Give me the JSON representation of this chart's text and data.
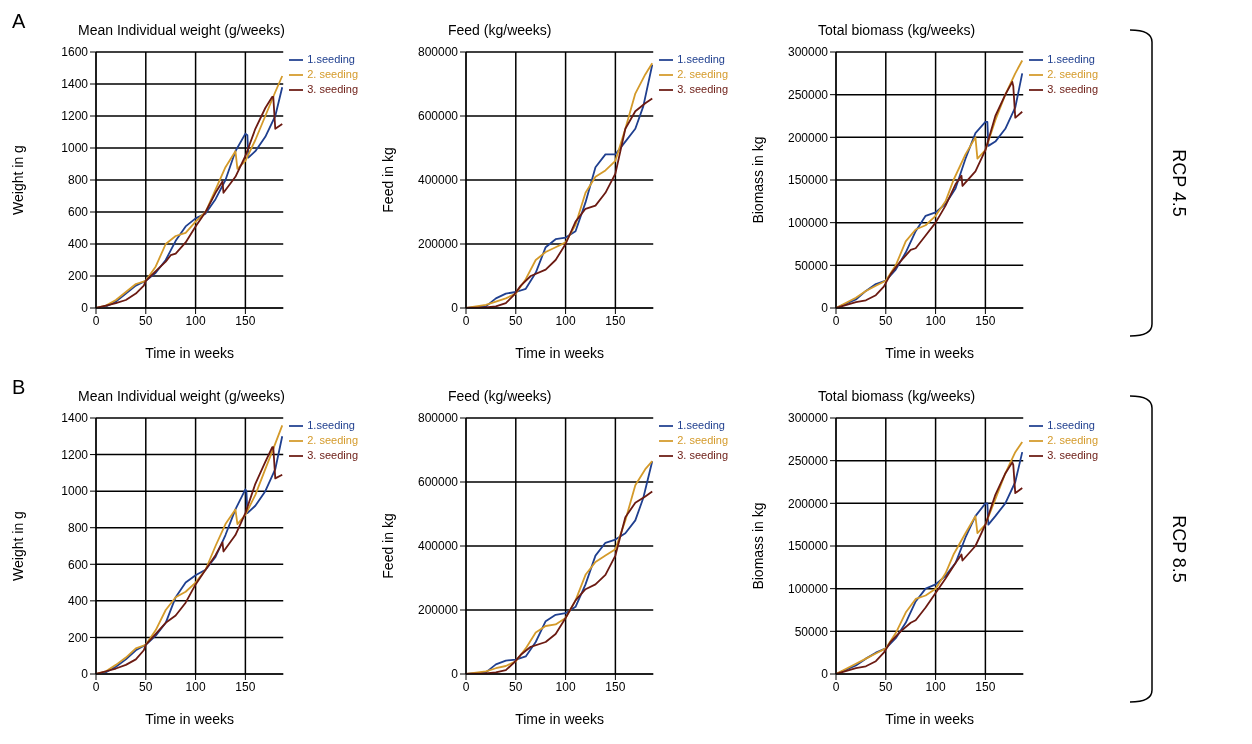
{
  "chart_data": [
    {
      "type": "line",
      "title": "Mean Individual weight (g/weeks)",
      "xlabel": "Time in weeks",
      "ylabel": "Weight in g",
      "annotations": [
        "A"
      ],
      "xlim": [
        0,
        188
      ],
      "xticks": [
        0,
        50,
        100,
        150
      ],
      "ylim": [
        0,
        1600
      ],
      "yticks": [
        0,
        200,
        400,
        600,
        800,
        1000,
        1200,
        1400,
        1600
      ],
      "grid": true,
      "legend": "top right",
      "series": [
        {
          "name": "1.seeding",
          "color": "#1f3f8f",
          "x": [
            0,
            10,
            20,
            30,
            40,
            50,
            60,
            70,
            80,
            90,
            100,
            110,
            120,
            130,
            140,
            150,
            152,
            153,
            160,
            170,
            180,
            187
          ],
          "values": [
            0,
            10,
            40,
            90,
            140,
            170,
            220,
            300,
            420,
            510,
            560,
            590,
            680,
            800,
            980,
            1090,
            1080,
            940,
            980,
            1070,
            1200,
            1380
          ]
        },
        {
          "name": "2. seeding",
          "color": "#d49a2a",
          "x": [
            0,
            10,
            20,
            30,
            40,
            50,
            60,
            70,
            80,
            90,
            100,
            110,
            120,
            130,
            140,
            142,
            150,
            160,
            170,
            180,
            187
          ],
          "values": [
            0,
            15,
            50,
            100,
            150,
            170,
            260,
            400,
            450,
            470,
            540,
            600,
            740,
            880,
            980,
            870,
            920,
            1050,
            1200,
            1350,
            1450
          ]
        },
        {
          "name": "3. seeding",
          "color": "#6b1a12",
          "x": [
            0,
            10,
            20,
            30,
            40,
            48,
            50,
            60,
            70,
            75,
            80,
            90,
            100,
            110,
            120,
            127,
            128,
            140,
            150,
            160,
            170,
            177,
            178,
            180,
            187
          ],
          "values": [
            0,
            15,
            30,
            50,
            90,
            140,
            170,
            230,
            290,
            330,
            340,
            410,
            510,
            600,
            720,
            790,
            720,
            820,
            950,
            1120,
            1250,
            1320,
            1320,
            1120,
            1150
          ]
        }
      ]
    },
    {
      "type": "line",
      "title": "Feed (kg/weeks)",
      "xlabel": "Time in weeks",
      "ylabel": "Feed in kg",
      "xlim": [
        0,
        188
      ],
      "xticks": [
        0,
        50,
        100,
        150
      ],
      "ylim": [
        0,
        800000
      ],
      "yticks": [
        0,
        200000,
        400000,
        600000,
        800000
      ],
      "grid": true,
      "legend": "top right",
      "series": [
        {
          "name": "1.seeding",
          "color": "#1f3f8f",
          "x": [
            0,
            20,
            30,
            40,
            50,
            60,
            70,
            80,
            90,
            100,
            110,
            120,
            130,
            140,
            150,
            160,
            170,
            178,
            187
          ],
          "values": [
            0,
            5000,
            30000,
            45000,
            50000,
            60000,
            110000,
            190000,
            215000,
            220000,
            240000,
            330000,
            440000,
            480000,
            480000,
            520000,
            560000,
            630000,
            760000
          ]
        },
        {
          "name": "2. seeding",
          "color": "#d49a2a",
          "x": [
            0,
            20,
            30,
            40,
            50,
            60,
            70,
            80,
            90,
            100,
            110,
            120,
            130,
            140,
            150,
            160,
            170,
            180,
            187
          ],
          "values": [
            0,
            10000,
            20000,
            30000,
            45000,
            90000,
            150000,
            175000,
            190000,
            205000,
            260000,
            360000,
            410000,
            430000,
            460000,
            560000,
            670000,
            730000,
            765000
          ]
        },
        {
          "name": "3. seeding",
          "color": "#6b1a12",
          "x": [
            0,
            20,
            30,
            40,
            48,
            55,
            65,
            80,
            90,
            100,
            110,
            120,
            130,
            140,
            150,
            160,
            170,
            180,
            187
          ],
          "values": [
            0,
            2000,
            5000,
            15000,
            40000,
            70000,
            100000,
            120000,
            150000,
            200000,
            270000,
            310000,
            320000,
            360000,
            420000,
            560000,
            615000,
            640000,
            655000
          ]
        }
      ]
    },
    {
      "type": "line",
      "title": "Total biomass (kg/weeks)",
      "xlabel": "Time in weeks",
      "ylabel": "Biomass  in kg",
      "annotations": [
        "RCP 4.5"
      ],
      "xlim": [
        0,
        188
      ],
      "xticks": [
        0,
        50,
        100,
        150
      ],
      "ylim": [
        0,
        300000
      ],
      "yticks": [
        0,
        50000,
        100000,
        150000,
        200000,
        250000,
        300000
      ],
      "grid": true,
      "legend": "top right",
      "series": [
        {
          "name": "1.seeding",
          "color": "#1f3f8f",
          "x": [
            0,
            20,
            30,
            40,
            50,
            60,
            70,
            80,
            90,
            100,
            110,
            120,
            130,
            140,
            150,
            152,
            153,
            160,
            170,
            180,
            187
          ],
          "values": [
            0,
            10000,
            20000,
            28000,
            32000,
            45000,
            65000,
            90000,
            108000,
            112000,
            122000,
            140000,
            175000,
            205000,
            218000,
            218000,
            190000,
            195000,
            210000,
            235000,
            275000
          ]
        },
        {
          "name": "2. seeding",
          "color": "#d49a2a",
          "x": [
            0,
            20,
            30,
            40,
            50,
            60,
            70,
            80,
            90,
            100,
            110,
            118,
            130,
            140,
            142,
            150,
            160,
            170,
            180,
            187
          ],
          "values": [
            0,
            12000,
            20000,
            26000,
            32000,
            50000,
            78000,
            92000,
            97000,
            108000,
            125000,
            150000,
            180000,
            200000,
            175000,
            185000,
            220000,
            250000,
            275000,
            290000
          ]
        },
        {
          "name": "3. seeding",
          "color": "#6b1a12",
          "x": [
            0,
            20,
            30,
            40,
            48,
            55,
            65,
            75,
            80,
            90,
            100,
            110,
            120,
            126,
            127,
            140,
            150,
            160,
            170,
            177,
            178,
            180,
            187
          ],
          "values": [
            0,
            7000,
            9000,
            15000,
            25000,
            40000,
            55000,
            68000,
            70000,
            85000,
            100000,
            120000,
            145000,
            155000,
            143000,
            160000,
            185000,
            225000,
            250000,
            265000,
            260000,
            223000,
            230000
          ]
        }
      ]
    },
    {
      "type": "line",
      "title": "Mean Individual weight (g/weeks)",
      "xlabel": "Time in weeks",
      "ylabel": "Weight in g",
      "annotations": [
        "B"
      ],
      "xlim": [
        0,
        188
      ],
      "xticks": [
        0,
        50,
        100,
        150
      ],
      "ylim": [
        0,
        1400
      ],
      "yticks": [
        0,
        200,
        400,
        600,
        800,
        1000,
        1200,
        1400
      ],
      "grid": true,
      "legend": "top right",
      "series": [
        {
          "name": "1.seeding",
          "color": "#1f3f8f",
          "x": [
            0,
            10,
            20,
            30,
            40,
            50,
            60,
            70,
            80,
            90,
            100,
            110,
            120,
            130,
            140,
            150,
            151,
            152,
            160,
            170,
            180,
            187
          ],
          "values": [
            0,
            10,
            40,
            80,
            130,
            160,
            210,
            280,
            420,
            500,
            540,
            570,
            640,
            760,
            900,
            1010,
            1000,
            880,
            920,
            1000,
            1120,
            1300
          ]
        },
        {
          "name": "2. seeding",
          "color": "#d49a2a",
          "x": [
            0,
            10,
            20,
            30,
            40,
            50,
            60,
            70,
            80,
            90,
            100,
            110,
            120,
            130,
            140,
            142,
            150,
            160,
            170,
            180,
            187
          ],
          "values": [
            0,
            15,
            50,
            90,
            140,
            160,
            240,
            350,
            420,
            450,
            500,
            570,
            700,
            820,
            900,
            820,
            870,
            980,
            1120,
            1260,
            1360
          ]
        },
        {
          "name": "3. seeding",
          "color": "#6b1a12",
          "x": [
            0,
            10,
            20,
            30,
            40,
            48,
            50,
            60,
            70,
            80,
            90,
            100,
            110,
            120,
            127,
            128,
            140,
            150,
            160,
            170,
            177,
            178,
            180,
            187
          ],
          "values": [
            0,
            15,
            30,
            50,
            80,
            130,
            160,
            220,
            280,
            320,
            390,
            490,
            570,
            650,
            720,
            670,
            760,
            880,
            1040,
            1160,
            1240,
            1240,
            1070,
            1090
          ]
        }
      ]
    },
    {
      "type": "line",
      "title": "Feed (kg/weeks)",
      "xlabel": "Time in weeks",
      "ylabel": "Feed in kg",
      "xlim": [
        0,
        188
      ],
      "xticks": [
        0,
        50,
        100,
        150
      ],
      "ylim": [
        0,
        800000
      ],
      "yticks": [
        0,
        200000,
        400000,
        600000,
        800000
      ],
      "grid": true,
      "legend": "top right",
      "series": [
        {
          "name": "1.seeding",
          "color": "#1f3f8f",
          "x": [
            0,
            20,
            30,
            40,
            50,
            60,
            70,
            80,
            90,
            100,
            110,
            120,
            130,
            140,
            150,
            160,
            170,
            178,
            187
          ],
          "values": [
            0,
            5000,
            30000,
            42000,
            45000,
            55000,
            100000,
            165000,
            185000,
            190000,
            210000,
            280000,
            370000,
            410000,
            420000,
            440000,
            480000,
            550000,
            665000
          ]
        },
        {
          "name": "2. seeding",
          "color": "#d49a2a",
          "x": [
            0,
            20,
            30,
            40,
            50,
            60,
            70,
            80,
            90,
            100,
            110,
            120,
            130,
            140,
            150,
            160,
            170,
            180,
            187
          ],
          "values": [
            0,
            8000,
            18000,
            25000,
            40000,
            80000,
            130000,
            150000,
            155000,
            175000,
            230000,
            310000,
            350000,
            370000,
            390000,
            480000,
            590000,
            640000,
            665000
          ]
        },
        {
          "name": "3. seeding",
          "color": "#6b1a12",
          "x": [
            0,
            20,
            30,
            40,
            48,
            55,
            65,
            80,
            90,
            100,
            110,
            120,
            130,
            140,
            150,
            160,
            170,
            180,
            187
          ],
          "values": [
            0,
            2000,
            5000,
            12000,
            35000,
            60000,
            85000,
            100000,
            125000,
            175000,
            230000,
            265000,
            280000,
            310000,
            370000,
            490000,
            535000,
            555000,
            570000
          ]
        }
      ]
    },
    {
      "type": "line",
      "title": "Total biomass (kg/weeks)",
      "xlabel": "Time in weeks",
      "ylabel": "Biomass  in kg",
      "annotations": [
        "RCP 8.5"
      ],
      "xlim": [
        0,
        188
      ],
      "xticks": [
        0,
        50,
        100,
        150
      ],
      "ylim": [
        0,
        300000
      ],
      "yticks": [
        0,
        50000,
        100000,
        150000,
        200000,
        250000,
        300000
      ],
      "grid": true,
      "legend": "top right",
      "series": [
        {
          "name": "1.seeding",
          "color": "#1f3f8f",
          "x": [
            0,
            20,
            30,
            40,
            50,
            60,
            70,
            80,
            90,
            100,
            110,
            120,
            130,
            140,
            150,
            152,
            153,
            160,
            170,
            180,
            187
          ],
          "values": [
            0,
            10000,
            18000,
            25000,
            30000,
            42000,
            60000,
            85000,
            100000,
            105000,
            115000,
            130000,
            160000,
            185000,
            200000,
            200000,
            175000,
            185000,
            200000,
            225000,
            260000
          ]
        },
        {
          "name": "2. seeding",
          "color": "#d49a2a",
          "x": [
            0,
            20,
            30,
            40,
            50,
            60,
            70,
            80,
            90,
            100,
            110,
            118,
            130,
            140,
            142,
            150,
            160,
            170,
            180,
            187
          ],
          "values": [
            0,
            12000,
            18000,
            24000,
            30000,
            48000,
            72000,
            88000,
            92000,
            100000,
            118000,
            140000,
            165000,
            185000,
            165000,
            175000,
            205000,
            235000,
            260000,
            272000
          ]
        },
        {
          "name": "3. seeding",
          "color": "#6b1a12",
          "x": [
            0,
            20,
            30,
            40,
            48,
            55,
            65,
            75,
            80,
            90,
            100,
            110,
            120,
            126,
            127,
            140,
            150,
            160,
            170,
            177,
            178,
            180,
            187
          ],
          "values": [
            0,
            7000,
            9000,
            15000,
            25000,
            38000,
            50000,
            60000,
            63000,
            78000,
            95000,
            112000,
            130000,
            140000,
            133000,
            150000,
            175000,
            210000,
            235000,
            248000,
            245000,
            212000,
            218000
          ]
        }
      ]
    }
  ]
}
